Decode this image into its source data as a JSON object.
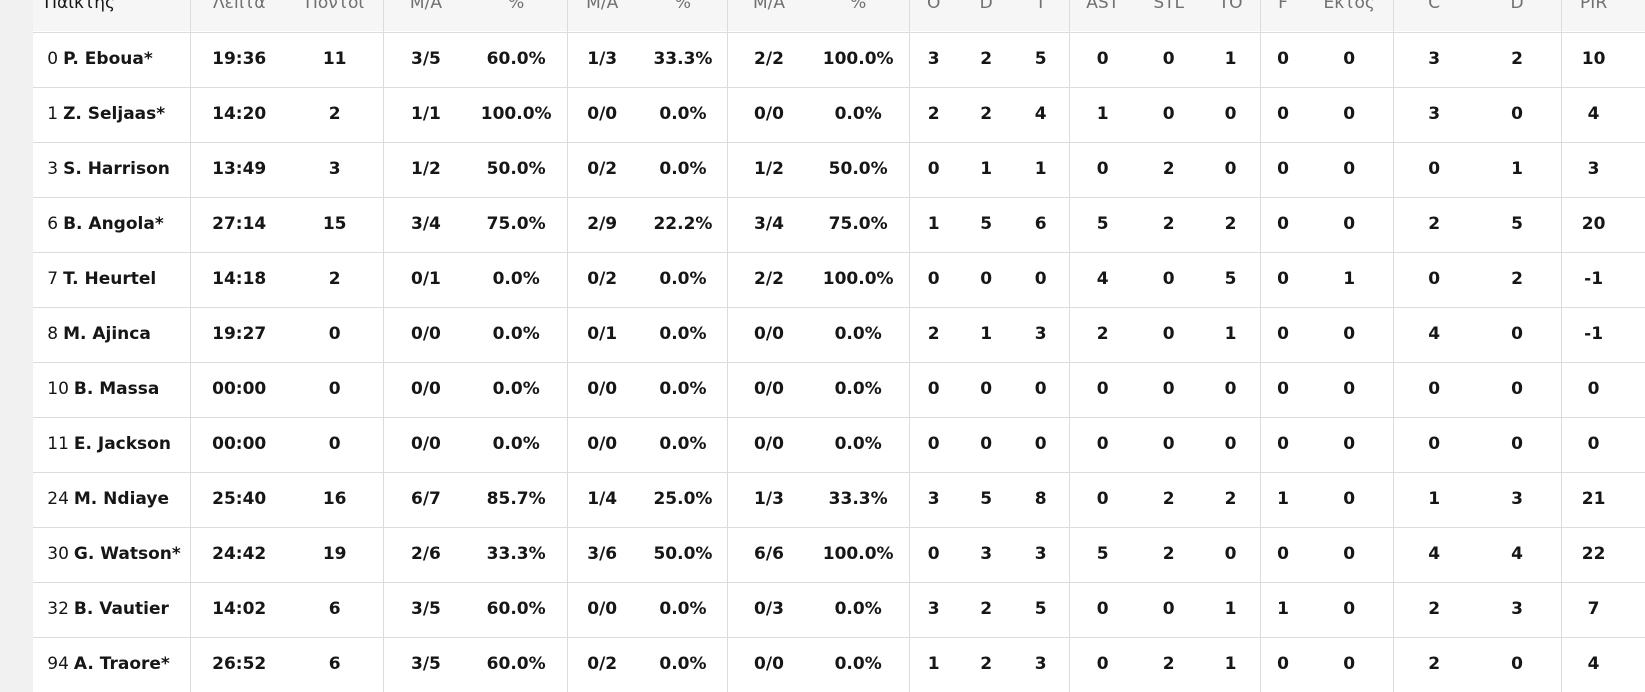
{
  "table": {
    "header": [
      "Παίκτης",
      "Λεπτά",
      "Πόντοι",
      "Μ/Α",
      "%",
      "Μ/Α",
      "%",
      "Μ/Α",
      "%",
      "O",
      "D",
      "T",
      "AST",
      "STL",
      "TO",
      "F",
      "Εκτος",
      "C",
      "D",
      "PIR"
    ],
    "rows": [
      {
        "number": "0",
        "name": "P. Eboua*",
        "cells": [
          "19:36",
          "11",
          "3/5",
          "60.0%",
          "1/3",
          "33.3%",
          "2/2",
          "100.0%",
          "3",
          "2",
          "5",
          "0",
          "0",
          "1",
          "0",
          "0",
          "3",
          "2",
          "10"
        ]
      },
      {
        "number": "1",
        "name": "Z. Seljaas*",
        "cells": [
          "14:20",
          "2",
          "1/1",
          "100.0%",
          "0/0",
          "0.0%",
          "0/0",
          "0.0%",
          "2",
          "2",
          "4",
          "1",
          "0",
          "0",
          "0",
          "0",
          "3",
          "0",
          "4"
        ]
      },
      {
        "number": "3",
        "name": "S. Harrison",
        "cells": [
          "13:49",
          "3",
          "1/2",
          "50.0%",
          "0/2",
          "0.0%",
          "1/2",
          "50.0%",
          "0",
          "1",
          "1",
          "0",
          "2",
          "0",
          "0",
          "0",
          "0",
          "1",
          "3"
        ]
      },
      {
        "number": "6",
        "name": "B. Angola*",
        "cells": [
          "27:14",
          "15",
          "3/4",
          "75.0%",
          "2/9",
          "22.2%",
          "3/4",
          "75.0%",
          "1",
          "5",
          "6",
          "5",
          "2",
          "2",
          "0",
          "0",
          "2",
          "5",
          "20"
        ]
      },
      {
        "number": "7",
        "name": "T. Heurtel",
        "cells": [
          "14:18",
          "2",
          "0/1",
          "0.0%",
          "0/2",
          "0.0%",
          "2/2",
          "100.0%",
          "0",
          "0",
          "0",
          "4",
          "0",
          "5",
          "0",
          "1",
          "0",
          "2",
          "-1"
        ]
      },
      {
        "number": "8",
        "name": "M. Ajinca",
        "cells": [
          "19:27",
          "0",
          "0/0",
          "0.0%",
          "0/1",
          "0.0%",
          "0/0",
          "0.0%",
          "2",
          "1",
          "3",
          "2",
          "0",
          "1",
          "0",
          "0",
          "4",
          "0",
          "-1"
        ]
      },
      {
        "number": "10",
        "name": "B. Massa",
        "cells": [
          "00:00",
          "0",
          "0/0",
          "0.0%",
          "0/0",
          "0.0%",
          "0/0",
          "0.0%",
          "0",
          "0",
          "0",
          "0",
          "0",
          "0",
          "0",
          "0",
          "0",
          "0",
          "0"
        ]
      },
      {
        "number": "11",
        "name": "E. Jackson",
        "cells": [
          "00:00",
          "0",
          "0/0",
          "0.0%",
          "0/0",
          "0.0%",
          "0/0",
          "0.0%",
          "0",
          "0",
          "0",
          "0",
          "0",
          "0",
          "0",
          "0",
          "0",
          "0",
          "0"
        ]
      },
      {
        "number": "24",
        "name": "M. Ndiaye",
        "cells": [
          "25:40",
          "16",
          "6/7",
          "85.7%",
          "1/4",
          "25.0%",
          "1/3",
          "33.3%",
          "3",
          "5",
          "8",
          "0",
          "2",
          "2",
          "1",
          "0",
          "1",
          "3",
          "21"
        ]
      },
      {
        "number": "30",
        "name": "G. Watson*",
        "cells": [
          "24:42",
          "19",
          "2/6",
          "33.3%",
          "3/6",
          "50.0%",
          "6/6",
          "100.0%",
          "0",
          "3",
          "3",
          "5",
          "2",
          "0",
          "0",
          "0",
          "4",
          "4",
          "22"
        ]
      },
      {
        "number": "32",
        "name": "B. Vautier",
        "cells": [
          "14:02",
          "6",
          "3/5",
          "60.0%",
          "0/0",
          "0.0%",
          "0/3",
          "0.0%",
          "3",
          "2",
          "5",
          "0",
          "0",
          "1",
          "1",
          "0",
          "2",
          "3",
          "7"
        ]
      },
      {
        "number": "94",
        "name": "A. Traore*",
        "cells": [
          "26:52",
          "6",
          "3/5",
          "60.0%",
          "0/2",
          "0.0%",
          "0/0",
          "0.0%",
          "1",
          "2",
          "3",
          "0",
          "2",
          "1",
          "0",
          "0",
          "2",
          "0",
          "4"
        ]
      }
    ]
  }
}
